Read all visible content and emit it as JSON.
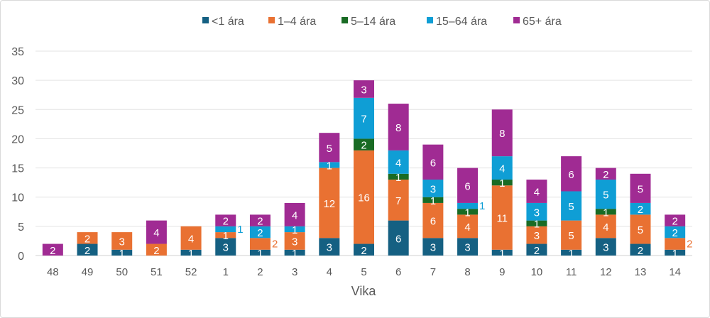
{
  "chart_data": {
    "type": "bar",
    "stacked": true,
    "title": "",
    "xlabel": "Vika",
    "ylabel": "",
    "ylim": [
      0,
      35
    ],
    "yticks": [
      0,
      5,
      10,
      15,
      20,
      25,
      30,
      35
    ],
    "grid": true,
    "legend_position": "top",
    "categories": [
      "48",
      "49",
      "50",
      "51",
      "52",
      "1",
      "2",
      "3",
      "4",
      "5",
      "6",
      "7",
      "8",
      "9",
      "10",
      "11",
      "12",
      "13",
      "14"
    ],
    "series": [
      {
        "name": "<1 ára",
        "color": "#156082",
        "values": [
          0,
          2,
          1,
          0,
          1,
          3,
          1,
          1,
          3,
          2,
          6,
          3,
          3,
          1,
          2,
          1,
          3,
          2,
          1
        ]
      },
      {
        "name": "1–4 ára",
        "color": "#e97132",
        "values": [
          0,
          2,
          3,
          2,
          4,
          1,
          2,
          3,
          12,
          16,
          7,
          6,
          4,
          11,
          3,
          5,
          4,
          5,
          2
        ]
      },
      {
        "name": "5–14 ára",
        "color": "#196b24",
        "values": [
          0,
          0,
          0,
          0,
          0,
          0,
          0,
          0,
          0,
          2,
          1,
          1,
          1,
          1,
          1,
          0,
          1,
          0,
          0
        ]
      },
      {
        "name": "15–64 ára",
        "color": "#0f9ed5",
        "values": [
          0,
          0,
          0,
          0,
          0,
          1,
          2,
          1,
          1,
          7,
          4,
          3,
          1,
          4,
          3,
          5,
          5,
          2,
          2
        ]
      },
      {
        "name": "65+ ára",
        "color": "#a02b93",
        "values": [
          2,
          0,
          0,
          4,
          0,
          2,
          2,
          4,
          5,
          3,
          8,
          6,
          6,
          8,
          4,
          6,
          2,
          5,
          2
        ]
      }
    ]
  }
}
